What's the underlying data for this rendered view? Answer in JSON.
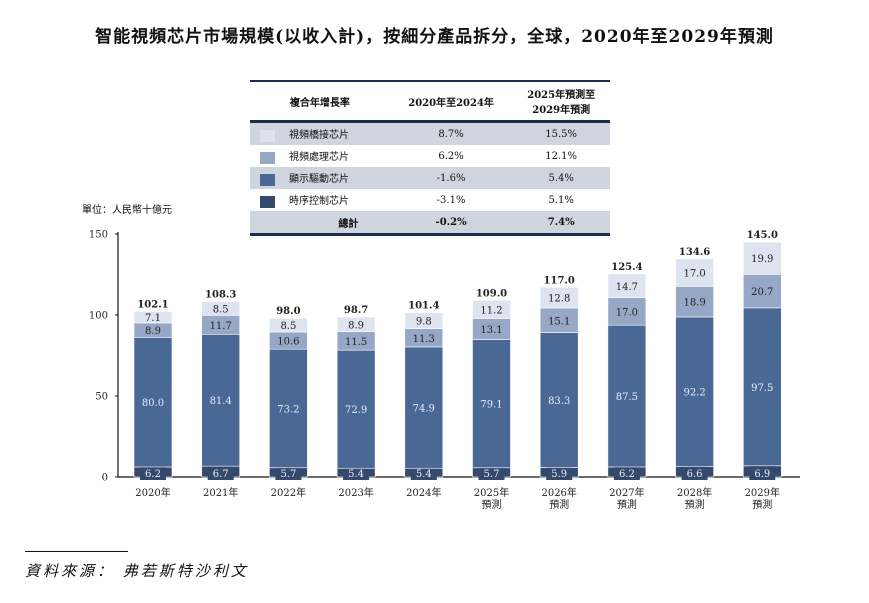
{
  "chart_data": {
    "type": "bar",
    "stacked": true,
    "title": "智能視頻芯片市場規模(以收入計)，按細分產品拆分，全球，2020年至2029年預測",
    "ylabel": "單位：人民幣十億元",
    "ylim": [
      0,
      150
    ],
    "yticks": [
      0,
      50,
      100,
      150
    ],
    "categories": [
      "2020年",
      "2021年",
      "2022年",
      "2023年",
      "2024年",
      "2025年\n預測",
      "2026年\n預測",
      "2027年\n預測",
      "2028年\n預測",
      "2029年\n預測"
    ],
    "series": [
      {
        "name": "時序控制芯片",
        "color": "#34496b",
        "values": [
          6.2,
          6.7,
          5.7,
          5.4,
          5.4,
          5.7,
          5.9,
          6.2,
          6.6,
          6.9
        ]
      },
      {
        "name": "顯示驅動芯片",
        "color": "#4a6896",
        "values": [
          80.0,
          81.4,
          73.2,
          72.9,
          74.9,
          79.1,
          83.3,
          87.5,
          92.2,
          97.5
        ]
      },
      {
        "name": "視頻處理芯片",
        "color": "#97a8c6",
        "values": [
          8.9,
          11.7,
          10.6,
          11.5,
          11.3,
          13.1,
          15.1,
          17.0,
          18.9,
          20.7
        ]
      },
      {
        "name": "視頻橋接芯片",
        "color": "#dde3ef",
        "values": [
          7.1,
          8.5,
          8.5,
          8.9,
          9.8,
          11.2,
          12.8,
          14.7,
          17.0,
          19.9
        ]
      }
    ],
    "totals": [
      102.1,
      108.3,
      98.0,
      98.7,
      101.4,
      109.0,
      117.0,
      125.4,
      134.6,
      145.0
    ]
  },
  "table": {
    "headers": [
      "複合年增長率",
      "2020年至2024年",
      "2025年預測至\n2029年預測"
    ],
    "rows": [
      {
        "name": "視頻橋接芯片",
        "color": "#dde3ef",
        "a": "8.7%",
        "b": "15.5%"
      },
      {
        "name": "視頻處理芯片",
        "color": "#97a8c6",
        "a": "6.2%",
        "b": "12.1%"
      },
      {
        "name": "顯示驅動芯片",
        "color": "#4a6896",
        "a": "-1.6%",
        "b": "5.4%"
      },
      {
        "name": "時序控制芯片",
        "color": "#34496b",
        "a": "-3.1%",
        "b": "5.1%"
      }
    ],
    "total": {
      "name": "總計",
      "a": "-0.2%",
      "b": "7.4%"
    }
  },
  "source": "資料來源： 弗若斯特沙利文"
}
